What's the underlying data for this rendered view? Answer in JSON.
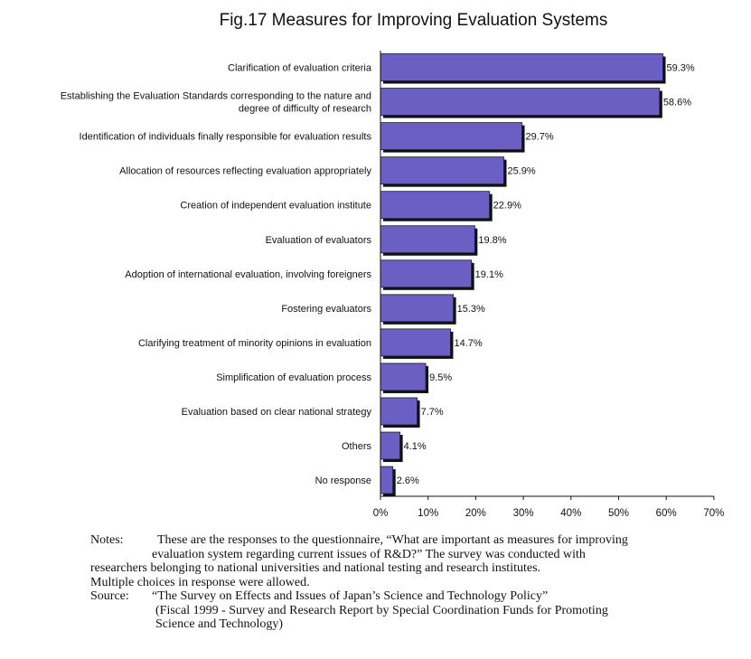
{
  "figure": {
    "title": "Fig.17   Measures for Improving Evaluation Systems"
  },
  "chart_data": {
    "type": "bar",
    "orientation": "horizontal",
    "title": "Fig.17   Measures for Improving Evaluation Systems",
    "categories": [
      [
        "Clarification of evaluation criteria"
      ],
      [
        "Establishing the Evaluation Standards corresponding to the nature and",
        "degree of difficulty of research"
      ],
      [
        "Identification of individuals finally responsible for evaluation results"
      ],
      [
        "Allocation of resources reflecting evaluation appropriately"
      ],
      [
        "Creation of independent evaluation institute"
      ],
      [
        "Evaluation of evaluators"
      ],
      [
        "Adoption of international evaluation, involving foreigners"
      ],
      [
        "Fostering evaluators"
      ],
      [
        "Clarifying treatment of minority opinions in evaluation"
      ],
      [
        "Simplification of evaluation process"
      ],
      [
        "Evaluation based on clear national strategy"
      ],
      [
        "Others"
      ],
      [
        "No response"
      ]
    ],
    "values": [
      59.3,
      58.6,
      29.7,
      25.9,
      22.9,
      19.8,
      19.1,
      15.3,
      14.7,
      9.5,
      7.7,
      4.1,
      2.6
    ],
    "value_labels": [
      "59.3%",
      "58.6%",
      "29.7%",
      "25.9%",
      "22.9%",
      "19.8%",
      "19.1%",
      "15.3%",
      "14.7%",
      "9.5%",
      "7.7%",
      "4.1%",
      "2.6%"
    ],
    "x_ticks": [
      0,
      10,
      20,
      30,
      40,
      50,
      60,
      70
    ],
    "x_tick_labels": [
      "0%",
      "10%",
      "20%",
      "30%",
      "40%",
      "50%",
      "60%",
      "70%"
    ],
    "xlim": [
      0,
      70
    ],
    "xlabel": "",
    "ylabel": "",
    "grid": false,
    "bar_color": "#6b5fc4",
    "bar_shadow_color": "#111111"
  },
  "notes": {
    "notes_label": "Notes:",
    "notes_lines": [
      "These are the responses to the questionnaire, “What are important as measures for improving",
      "evaluation system regarding current issues of R&D?”   The survey was conducted with",
      "researchers belonging to national universities and national testing and research institutes.",
      "Multiple choices in response were allowed."
    ],
    "source_label": "Source:",
    "source_lines": [
      "“The Survey on Effects and Issues of Japan’s Science and Technology Policy”",
      "(Fiscal 1999 - Survey and Research Report by Special Coordination Funds for Promoting",
      "Science and Technology)"
    ]
  }
}
